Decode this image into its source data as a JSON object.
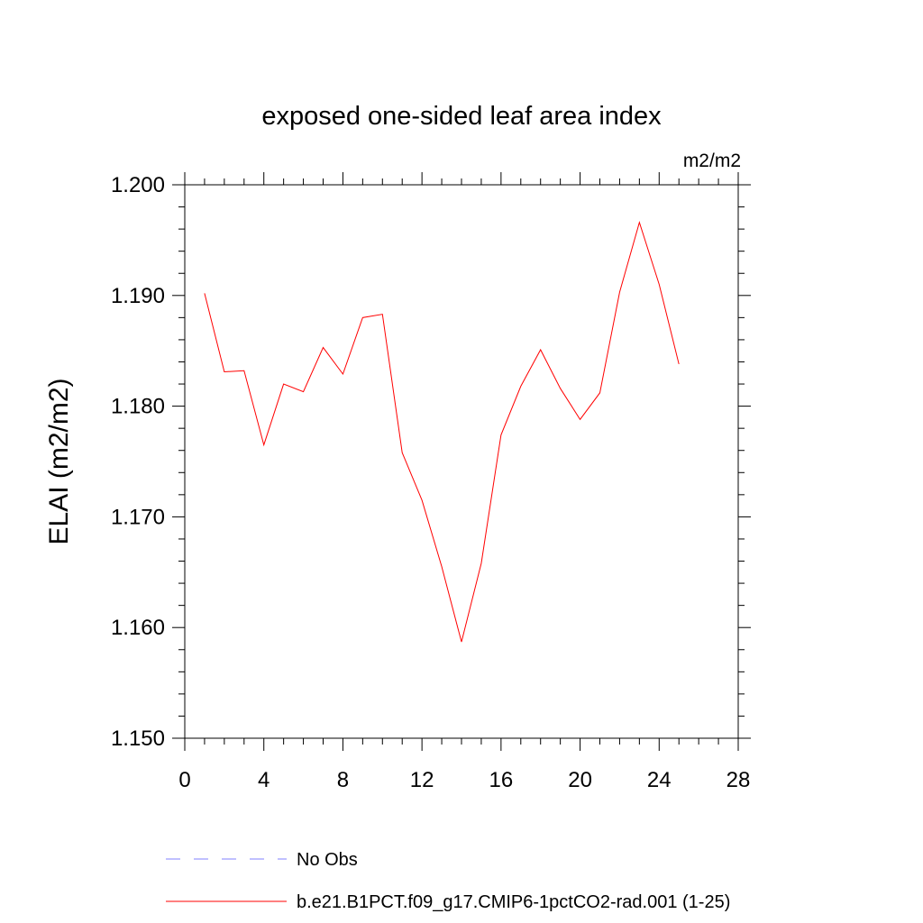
{
  "chart_data": {
    "type": "line",
    "title": "exposed one-sided leaf area index",
    "units": "m2/m2",
    "ylabel": "ELAI  (m2/m2)",
    "xlabel": "",
    "xlim": [
      0,
      28
    ],
    "ylim": [
      1.15,
      1.2
    ],
    "xticks": [
      0,
      4,
      8,
      12,
      16,
      20,
      24,
      28
    ],
    "yticks": [
      1.15,
      1.16,
      1.17,
      1.18,
      1.19,
      1.2
    ],
    "ytick_labels": [
      "1.150",
      "1.160",
      "1.170",
      "1.180",
      "1.190",
      "1.200"
    ],
    "grid": false,
    "legend_position": "bottom",
    "series": [
      {
        "name": "b.e21.B1PCT.f09_g17.CMIP6-1pctCO2-rad.001 (1-25)",
        "color": "#ff0000",
        "style": "solid",
        "x": [
          1,
          2,
          3,
          4,
          5,
          6,
          7,
          8,
          9,
          10,
          11,
          12,
          13,
          14,
          15,
          16,
          17,
          18,
          19,
          20,
          21,
          22,
          23,
          24,
          25
        ],
        "y": [
          1.1902,
          1.1831,
          1.1832,
          1.1765,
          1.182,
          1.1813,
          1.1853,
          1.1829,
          1.188,
          1.1883,
          1.1758,
          1.1715,
          1.1655,
          1.1587,
          1.1658,
          1.1774,
          1.1818,
          1.1851,
          1.1816,
          1.1788,
          1.1812,
          1.1903,
          1.1966,
          1.191,
          1.1838
        ]
      }
    ],
    "legend": [
      {
        "label": "No Obs",
        "color": "#8080ff",
        "style": "dashed"
      },
      {
        "label": "b.e21.B1PCT.f09_g17.CMIP6-1pctCO2-rad.001 (1-25)",
        "color": "#ff0000",
        "style": "solid"
      }
    ]
  }
}
